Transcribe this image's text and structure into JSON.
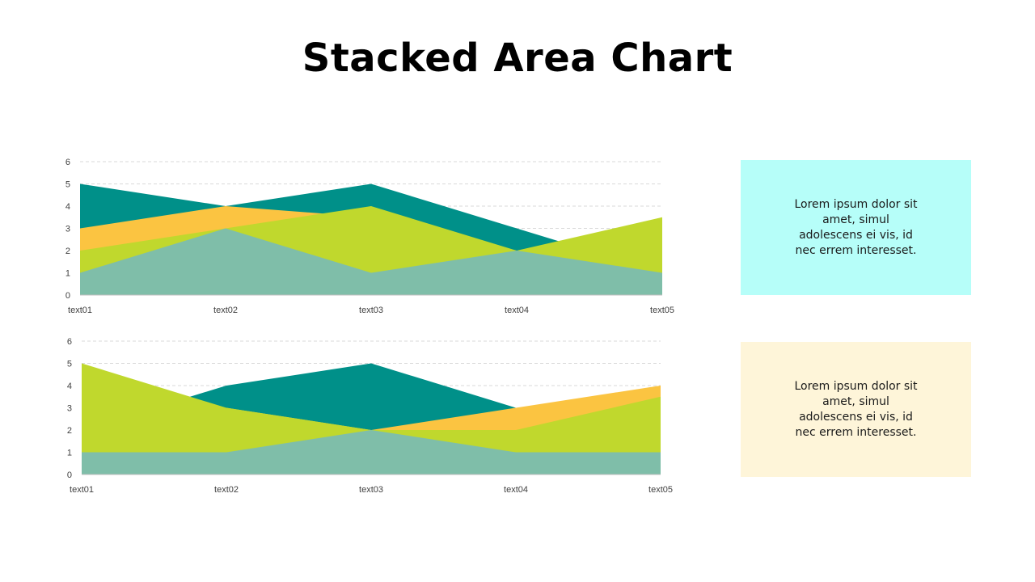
{
  "title": "Stacked Area Chart",
  "colors": {
    "teal": "#009089",
    "orange": "#FBC441",
    "lime": "#C0D82D",
    "sage": "#7FBEA9",
    "box1_bg": "#B6FEF9",
    "box2_bg": "#FEF5D9"
  },
  "text_boxes": [
    {
      "text": "Lorem ipsum dolor sit amet, simul adolescens ei vis, id nec errem interesset."
    },
    {
      "text": "Lorem ipsum dolor sit amet, simul adolescens ei vis, id nec errem interesset."
    }
  ],
  "chart_data": [
    {
      "type": "area",
      "categories": [
        "text01",
        "text02",
        "text03",
        "text04",
        "text05"
      ],
      "ylim": [
        0,
        6
      ],
      "yticks": [
        0,
        1,
        2,
        3,
        4,
        5,
        6
      ],
      "grid": true,
      "series": [
        {
          "color": "teal",
          "values": [
            5,
            4,
            5,
            3,
            1
          ]
        },
        {
          "color": "orange",
          "values": [
            3,
            4,
            3.5,
            2,
            1
          ]
        },
        {
          "color": "lime",
          "values": [
            2,
            3,
            4,
            2,
            3.5
          ]
        },
        {
          "color": "sage",
          "values": [
            1,
            3,
            1,
            2,
            1
          ]
        }
      ]
    },
    {
      "type": "area",
      "categories": [
        "text01",
        "text02",
        "text03",
        "text04",
        "text05"
      ],
      "ylim": [
        0,
        6
      ],
      "yticks": [
        0,
        1,
        2,
        3,
        4,
        5,
        6
      ],
      "grid": true,
      "series": [
        {
          "color": "teal",
          "values": [
            2,
            4,
            5,
            3,
            3
          ]
        },
        {
          "color": "orange",
          "values": [
            2,
            3,
            2,
            3,
            4
          ]
        },
        {
          "color": "lime",
          "values": [
            5,
            3,
            2,
            2,
            3.5
          ]
        },
        {
          "color": "sage",
          "values": [
            1,
            1,
            2,
            1,
            1
          ]
        }
      ]
    }
  ]
}
